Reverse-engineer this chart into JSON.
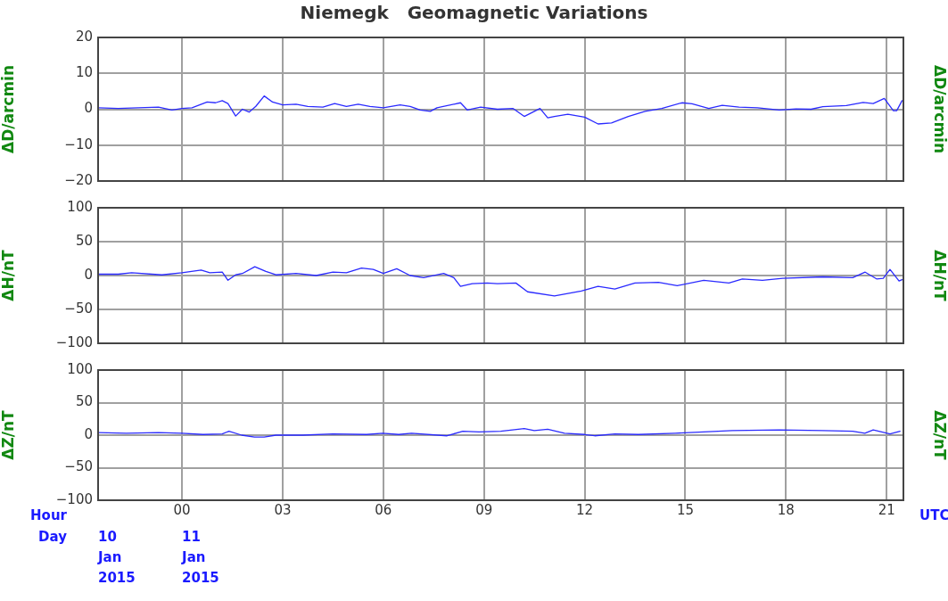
{
  "chart_data": [
    {
      "type": "line",
      "title": "Niemegk   Geomagnetic Variations",
      "ylabel": "ΔD/arcmin",
      "y2label": "ΔD/arcmin",
      "xlim": [
        -2.5,
        21.5
      ],
      "xticks": [
        {
          "value": 0,
          "label": null
        },
        {
          "value": 3,
          "label": null
        },
        {
          "value": 6,
          "label": null
        },
        {
          "value": 9,
          "label": null
        },
        {
          "value": 12,
          "label": null
        },
        {
          "value": 15,
          "label": null
        },
        {
          "value": 18,
          "label": null
        },
        {
          "value": 21,
          "label": null
        }
      ],
      "ylim": [
        -20,
        20
      ],
      "yticks": [
        {
          "value": -20,
          "label": "−20"
        },
        {
          "value": -10,
          "label": "−10"
        },
        0,
        10,
        20
      ],
      "grid": true,
      "tick_labels": "y",
      "legend": false,
      "marker": "none",
      "line_style": "solid",
      "series": [
        {
          "color": "#2a2aff",
          "x": [
            -2.5,
            -1.9,
            -0.7,
            -0.3,
            0,
            0.3,
            0.75,
            1.0,
            1.2,
            1.37,
            1.6,
            1.8,
            2.0,
            2.2,
            2.45,
            2.7,
            3.0,
            3.4,
            3.75,
            4.2,
            4.55,
            4.9,
            5.25,
            5.6,
            6.0,
            6.5,
            6.8,
            7.1,
            7.4,
            7.6,
            8.3,
            8.5,
            8.9,
            9.4,
            9.87,
            10.2,
            10.67,
            10.9,
            11.1,
            11.5,
            12.0,
            12.4,
            12.8,
            13.3,
            13.8,
            14.3,
            14.9,
            15.2,
            15.7,
            16.1,
            16.6,
            17.15,
            17.8,
            18.3,
            18.75,
            19.1,
            19.8,
            20.3,
            20.6,
            20.93,
            21.2,
            21.3,
            21.46
          ],
          "values": [
            0.4,
            0.2,
            0.6,
            -0.2,
            0.2,
            0.4,
            2.0,
            1.8,
            2.4,
            1.6,
            -1.9,
            0,
            -0.8,
            0.8,
            3.7,
            2.0,
            1.2,
            1.4,
            0.8,
            0.6,
            1.6,
            0.8,
            1.4,
            0.8,
            0.4,
            1.2,
            0.8,
            -0.2,
            -0.6,
            0.4,
            1.8,
            -0.2,
            0.6,
            0,
            0.2,
            -2.0,
            0.2,
            -2.4,
            -2.0,
            -1.4,
            -2.2,
            -4.1,
            -3.8,
            -2.0,
            -0.6,
            0.2,
            1.8,
            1.5,
            0.2,
            1.1,
            0.6,
            0.4,
            -0.2,
            0.1,
            0,
            0.7,
            1.0,
            1.9,
            1.6,
            3.0,
            -0.4,
            -0.4,
            2.4
          ]
        }
      ]
    },
    {
      "type": "line",
      "ylabel": "ΔH/nT",
      "y2label": "ΔH/nT",
      "xlim": [
        -2.5,
        21.5
      ],
      "xticks": [
        {
          "value": 0,
          "label": null
        },
        {
          "value": 3,
          "label": null
        },
        {
          "value": 6,
          "label": null
        },
        {
          "value": 9,
          "label": null
        },
        {
          "value": 12,
          "label": null
        },
        {
          "value": 15,
          "label": null
        },
        {
          "value": 18,
          "label": null
        },
        {
          "value": 21,
          "label": null
        }
      ],
      "ylim": [
        -100,
        100
      ],
      "yticks": [
        {
          "value": -100,
          "label": "−100"
        },
        {
          "value": -50,
          "label": "−50"
        },
        0,
        50,
        100
      ],
      "grid": true,
      "tick_labels": "y",
      "legend": false,
      "marker": "none",
      "line_style": "solid",
      "series": [
        {
          "color": "#2a2aff",
          "x": [
            -2.5,
            -1.9,
            -1.5,
            -0.6,
            0,
            0.57,
            0.83,
            1.2,
            1.37,
            1.6,
            1.8,
            2.17,
            2.5,
            2.8,
            3.4,
            4.0,
            4.5,
            4.9,
            5.35,
            5.7,
            6.0,
            6.4,
            6.8,
            7.2,
            7.8,
            8.1,
            8.3,
            8.65,
            9.1,
            9.4,
            9.95,
            10.3,
            11.1,
            11.9,
            12.4,
            12.9,
            13.5,
            14.2,
            14.76,
            15.55,
            16.3,
            16.7,
            17.3,
            17.9,
            19.1,
            19.99,
            20.36,
            20.7,
            20.9,
            21.1,
            21.37,
            21.46
          ],
          "values": [
            2,
            2,
            4,
            1,
            4,
            8,
            4,
            5,
            -7,
            1,
            3,
            13,
            6,
            1,
            3,
            0,
            5,
            4,
            11,
            9,
            3,
            10,
            0,
            -3,
            3,
            -3,
            -16,
            -12,
            -11,
            -12,
            -11,
            -24,
            -30,
            -23,
            -16,
            -20,
            -11,
            -10,
            -15,
            -7,
            -11,
            -5,
            -7,
            -4,
            -2,
            -3,
            5,
            -5,
            -4,
            9,
            -8,
            -6
          ]
        }
      ]
    },
    {
      "type": "line",
      "ylabel": "ΔZ/nT",
      "y2label": "ΔZ/nT",
      "xlim": [
        -2.5,
        21.5
      ],
      "xticks": [
        {
          "value": 0,
          "label": "00"
        },
        {
          "value": 3,
          "label": "03"
        },
        {
          "value": 6,
          "label": "06"
        },
        {
          "value": 9,
          "label": "09"
        },
        12,
        15,
        18,
        21
      ],
      "ylim": [
        -100,
        100
      ],
      "yticks": [
        {
          "value": -100,
          "label": "−100"
        },
        {
          "value": -50,
          "label": "−50"
        },
        0,
        50,
        100
      ],
      "grid": true,
      "legend": false,
      "marker": "none",
      "line_style": "solid",
      "annotations": [
        "Hour",
        "Day",
        "UTC",
        "10 Jan 2015",
        "11 Jan 2015"
      ],
      "series": [
        {
          "color": "#2a2aff",
          "x": [
            -2.5,
            -1.66,
            -0.7,
            0,
            0.63,
            1.2,
            1.4,
            1.78,
            2.16,
            2.45,
            2.8,
            3.6,
            4.5,
            5.5,
            5.98,
            6.46,
            6.84,
            7.9,
            8.37,
            8.85,
            9.5,
            10.2,
            10.5,
            10.9,
            11.4,
            12.0,
            12.3,
            12.9,
            13.6,
            14.7,
            15.55,
            16.4,
            17.8,
            19.1,
            19.99,
            20.35,
            20.6,
            21.1,
            21.4
          ],
          "values": [
            4,
            3,
            4,
            3,
            1,
            2,
            6,
            0,
            -3,
            -3,
            0,
            0,
            2,
            1,
            3,
            1,
            3,
            -1,
            6,
            5,
            6,
            10,
            7,
            9,
            3,
            1,
            -1,
            2,
            1,
            3,
            5,
            7,
            8,
            7,
            6,
            3,
            8,
            2,
            6
          ]
        }
      ]
    }
  ]
}
